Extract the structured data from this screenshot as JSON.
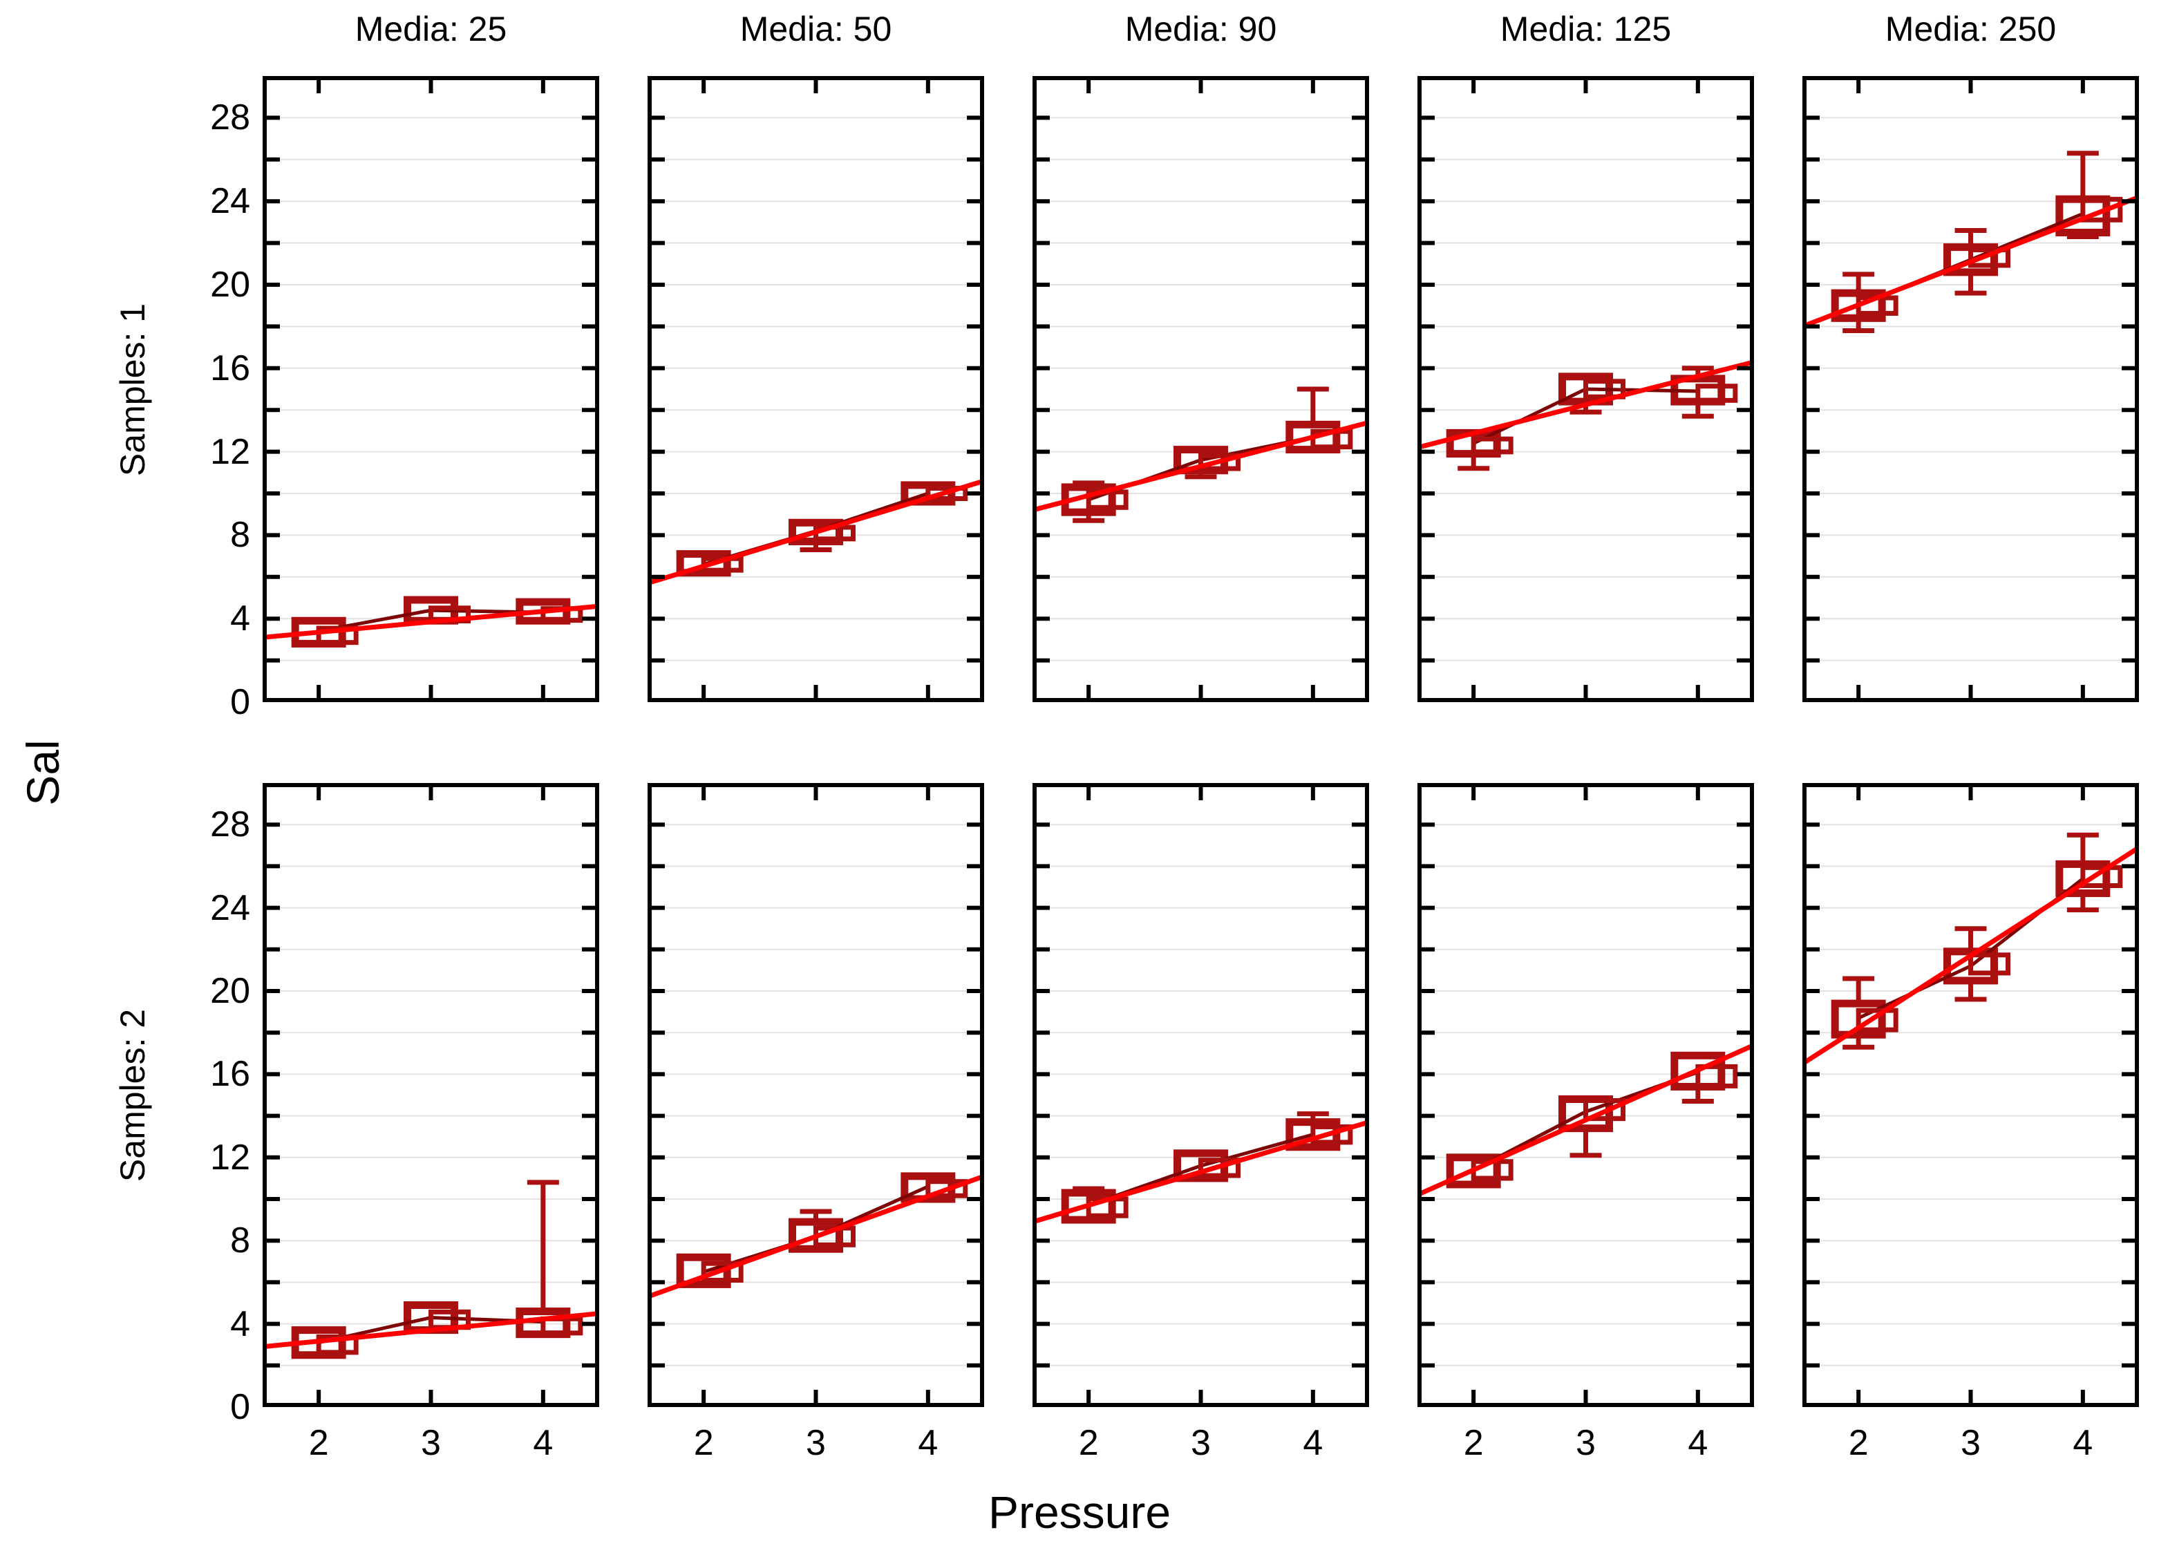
{
  "chart_data": {
    "type": "boxplot-trellis",
    "ylabel": "Sal",
    "xlabel": "Pressure",
    "row_titles": [
      "Samples: 1",
      "Samples: 2"
    ],
    "col_titles": [
      "Media: 25",
      "Media: 50",
      "Media: 90",
      "Media: 125",
      "Media: 250"
    ],
    "x": [
      2,
      3,
      4
    ],
    "x_range": [
      1.5,
      4.5
    ],
    "y_range": [
      0,
      30
    ],
    "y_major_ticks": [
      28,
      24,
      20,
      16,
      12,
      8,
      4,
      0
    ],
    "y_minor_step": 2,
    "grid": "horizontal light lines every 2 units",
    "legend": "none",
    "colors": {
      "box": "#ab1010",
      "connector": "#7d0505",
      "fit_line": "#ff0000",
      "grid": "#e2e2e2",
      "frame": "#000000",
      "text": "#000000",
      "background": "#ffffff"
    },
    "rows": [
      {
        "label": "Samples: 1",
        "panels": [
          {
            "media": "25",
            "boxes": [
              {
                "x": 2,
                "median": 3.4,
                "q1": 2.8,
                "q3": 3.9,
                "whisker_low": 2.8,
                "whisker_high": 3.9,
                "median2": 3.2
              },
              {
                "x": 3,
                "median": 4.4,
                "q1": 3.9,
                "q3": 4.9,
                "whisker_low": 3.9,
                "whisker_high": 4.9,
                "median2": 4.2
              },
              {
                "x": 4,
                "median": 4.3,
                "q1": 3.9,
                "q3": 4.8,
                "whisker_low": 3.9,
                "whisker_high": 4.8,
                "median2": 4.2
              }
            ],
            "fit_line": {
              "x": [
                1.5,
                4.5
              ],
              "y": [
                3.1,
                4.6
              ]
            }
          },
          {
            "media": "50",
            "boxes": [
              {
                "x": 2,
                "median": 6.6,
                "q1": 6.2,
                "q3": 7.1,
                "whisker_low": 6.2,
                "whisker_high": 7.1,
                "median2": 6.6
              },
              {
                "x": 3,
                "median": 8.2,
                "q1": 7.7,
                "q3": 8.6,
                "whisker_low": 7.3,
                "whisker_high": 8.6,
                "median2": 8.1
              },
              {
                "x": 4,
                "median": 10.0,
                "q1": 9.6,
                "q3": 10.4,
                "whisker_low": 9.6,
                "whisker_high": 10.4,
                "median2": 10.0
              }
            ],
            "fit_line": {
              "x": [
                1.5,
                4.5
              ],
              "y": [
                5.7,
                10.6
              ]
            }
          },
          {
            "media": "90",
            "boxes": [
              {
                "x": 2,
                "median": 9.7,
                "q1": 9.1,
                "q3": 10.3,
                "whisker_low": 8.7,
                "whisker_high": 10.5,
                "median2": 9.7
              },
              {
                "x": 3,
                "median": 11.6,
                "q1": 11.1,
                "q3": 12.1,
                "whisker_low": 10.8,
                "whisker_high": 12.1,
                "median2": 11.5
              },
              {
                "x": 4,
                "median": 12.7,
                "q1": 12.1,
                "q3": 13.3,
                "whisker_low": 12.1,
                "whisker_high": 15.0,
                "median2": 12.6
              }
            ],
            "fit_line": {
              "x": [
                1.5,
                4.5
              ],
              "y": [
                9.2,
                13.4
              ]
            }
          },
          {
            "media": "125",
            "boxes": [
              {
                "x": 2,
                "median": 12.4,
                "q1": 11.9,
                "q3": 12.9,
                "whisker_low": 11.2,
                "whisker_high": 12.9,
                "median2": 12.3
              },
              {
                "x": 3,
                "median": 15.0,
                "q1": 14.4,
                "q3": 15.6,
                "whisker_low": 13.9,
                "whisker_high": 15.6,
                "median2": 15.0
              },
              {
                "x": 4,
                "median": 14.9,
                "q1": 14.4,
                "q3": 15.5,
                "whisker_low": 13.7,
                "whisker_high": 16.0,
                "median2": 14.8
              }
            ],
            "fit_line": {
              "x": [
                1.5,
                4.5
              ],
              "y": [
                12.2,
                16.3
              ]
            }
          },
          {
            "media": "250",
            "boxes": [
              {
                "x": 2,
                "median": 19.0,
                "q1": 18.4,
                "q3": 19.6,
                "whisker_low": 17.8,
                "whisker_high": 20.5,
                "median2": 19.0
              },
              {
                "x": 3,
                "median": 21.2,
                "q1": 20.6,
                "q3": 21.8,
                "whisker_low": 19.6,
                "whisker_high": 22.6,
                "median2": 21.3
              },
              {
                "x": 4,
                "median": 23.4,
                "q1": 22.5,
                "q3": 24.1,
                "whisker_low": 22.3,
                "whisker_high": 26.3,
                "median2": 23.6
              }
            ],
            "fit_line": {
              "x": [
                1.5,
                4.5
              ],
              "y": [
                18.0,
                24.2
              ]
            }
          }
        ]
      },
      {
        "label": "Samples: 2",
        "panels": [
          {
            "media": "25",
            "boxes": [
              {
                "x": 2,
                "median": 3.1,
                "q1": 2.5,
                "q3": 3.7,
                "whisker_low": 2.5,
                "whisker_high": 3.7,
                "median2": 3.0
              },
              {
                "x": 3,
                "median": 4.3,
                "q1": 3.7,
                "q3": 4.9,
                "whisker_low": 3.7,
                "whisker_high": 4.9,
                "median2": 4.2
              },
              {
                "x": 4,
                "median": 4.1,
                "q1": 3.5,
                "q3": 4.6,
                "whisker_low": 3.5,
                "whisker_high": 10.8,
                "median2": 3.9
              }
            ],
            "fit_line": {
              "x": [
                1.5,
                4.5
              ],
              "y": [
                2.9,
                4.5
              ]
            }
          },
          {
            "media": "50",
            "boxes": [
              {
                "x": 2,
                "median": 6.5,
                "q1": 5.9,
                "q3": 7.2,
                "whisker_low": 5.9,
                "whisker_high": 7.2,
                "median2": 6.5
              },
              {
                "x": 3,
                "median": 8.2,
                "q1": 7.6,
                "q3": 8.9,
                "whisker_low": 7.6,
                "whisker_high": 9.4,
                "median2": 8.2
              },
              {
                "x": 4,
                "median": 10.6,
                "q1": 10.0,
                "q3": 11.1,
                "whisker_low": 10.0,
                "whisker_high": 11.1,
                "median2": 10.5
              }
            ],
            "fit_line": {
              "x": [
                1.5,
                4.5
              ],
              "y": [
                5.3,
                11.1
              ]
            }
          },
          {
            "media": "90",
            "boxes": [
              {
                "x": 2,
                "median": 9.7,
                "q1": 9.0,
                "q3": 10.3,
                "whisker_low": 9.0,
                "whisker_high": 10.5,
                "median2": 9.6
              },
              {
                "x": 3,
                "median": 11.6,
                "q1": 11.0,
                "q3": 12.2,
                "whisker_low": 11.0,
                "whisker_high": 12.2,
                "median2": 11.5
              },
              {
                "x": 4,
                "median": 13.1,
                "q1": 12.5,
                "q3": 13.7,
                "whisker_low": 12.5,
                "whisker_high": 14.1,
                "median2": 13.1
              }
            ],
            "fit_line": {
              "x": [
                1.5,
                4.5
              ],
              "y": [
                8.9,
                13.7
              ]
            }
          },
          {
            "media": "125",
            "boxes": [
              {
                "x": 2,
                "median": 11.4,
                "q1": 10.7,
                "q3": 12.0,
                "whisker_low": 10.7,
                "whisker_high": 12.0,
                "median2": 11.4
              },
              {
                "x": 3,
                "median": 14.2,
                "q1": 13.4,
                "q3": 14.8,
                "whisker_low": 12.1,
                "whisker_high": 14.8,
                "median2": 14.3
              },
              {
                "x": 4,
                "median": 16.1,
                "q1": 15.4,
                "q3": 16.9,
                "whisker_low": 14.7,
                "whisker_high": 16.9,
                "median2": 15.9
              }
            ],
            "fit_line": {
              "x": [
                1.5,
                4.5
              ],
              "y": [
                10.2,
                17.4
              ]
            }
          },
          {
            "media": "250",
            "boxes": [
              {
                "x": 2,
                "median": 18.7,
                "q1": 17.9,
                "q3": 19.4,
                "whisker_low": 17.3,
                "whisker_high": 20.6,
                "median2": 18.6
              },
              {
                "x": 3,
                "median": 21.2,
                "q1": 20.5,
                "q3": 21.9,
                "whisker_low": 19.6,
                "whisker_high": 23.0,
                "median2": 21.3
              },
              {
                "x": 4,
                "median": 25.4,
                "q1": 24.7,
                "q3": 26.1,
                "whisker_low": 23.9,
                "whisker_high": 27.5,
                "median2": 25.5
              }
            ],
            "fit_line": {
              "x": [
                1.5,
                4.5
              ],
              "y": [
                16.5,
                26.9
              ]
            }
          }
        ]
      }
    ]
  }
}
